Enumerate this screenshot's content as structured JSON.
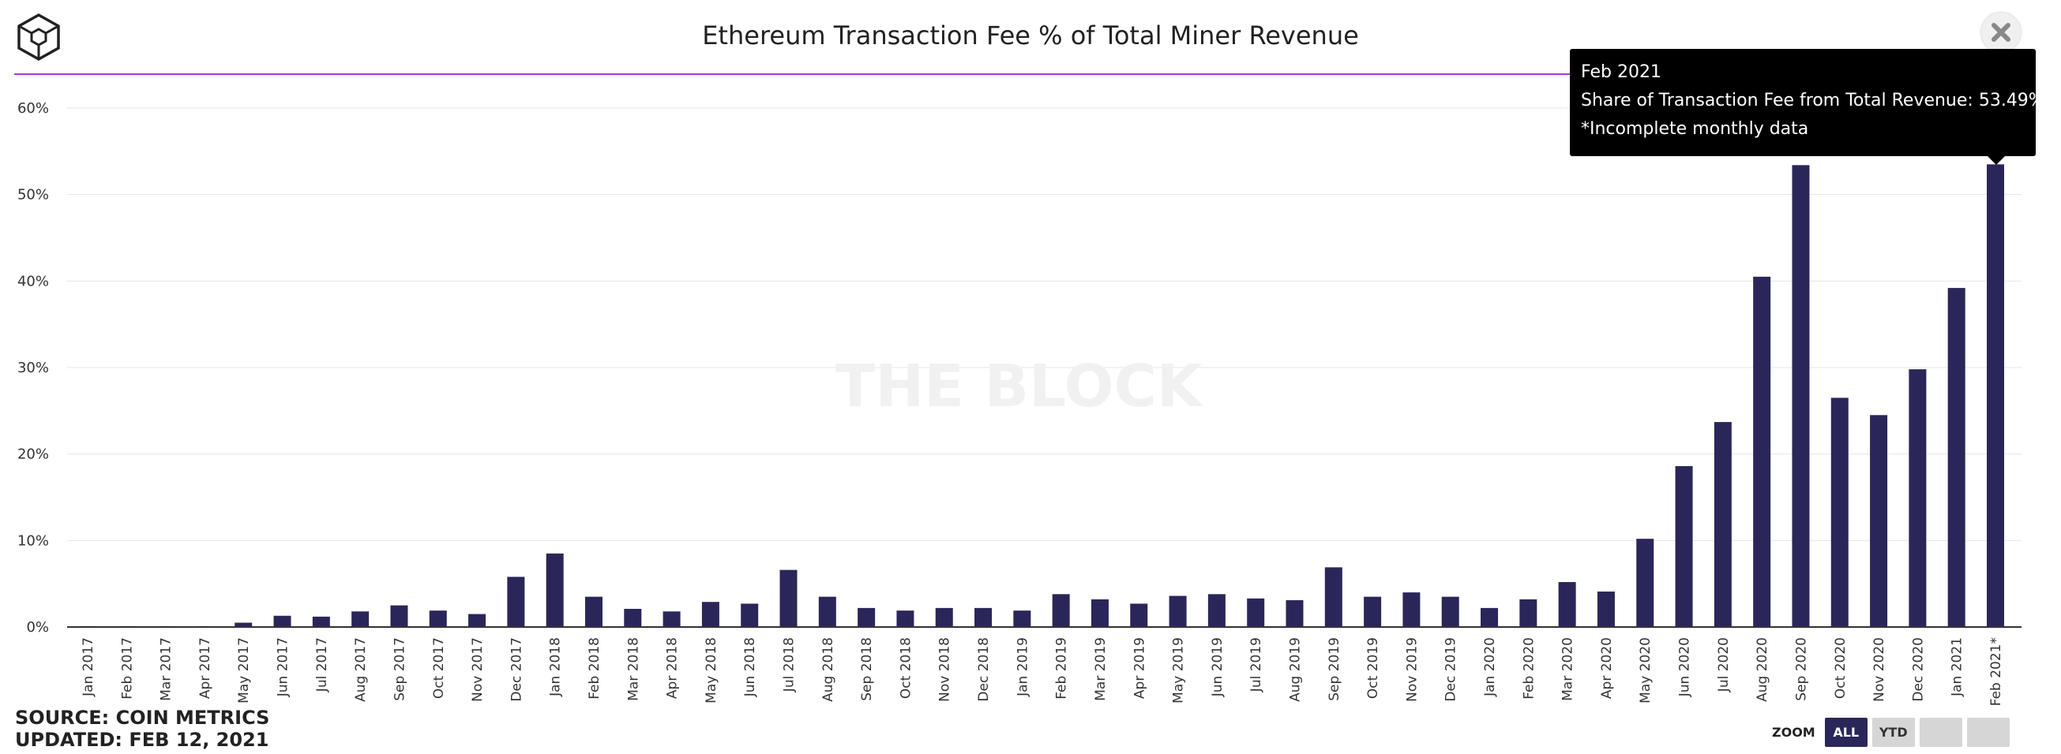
{
  "header": {
    "title": "Ethereum Transaction Fee % of Total Miner Revenue",
    "close_icon": "close-icon",
    "logo_icon": "the-block-logo-icon"
  },
  "watermark": "THE BLOCK",
  "footer": {
    "source": "SOURCE: COIN METRICS",
    "updated": "UPDATED: FEB 12, 2021"
  },
  "zoom": {
    "label": "ZOOM",
    "buttons": [
      "ALL",
      "YTD",
      "",
      ""
    ],
    "active": "ALL"
  },
  "tooltip": {
    "line1": "Feb 2021",
    "line2": "Share of Transaction Fee from Total Revenue: 53.49%",
    "line3": "*Incomplete monthly data"
  },
  "colors": {
    "bar": "#2b2659",
    "accent_line": "#a93ad0",
    "grid": "#e6e6e6",
    "tooltip_bg": "#000000"
  },
  "chart_data": {
    "type": "bar",
    "title": "Ethereum Transaction Fee % of Total Miner Revenue",
    "xlabel": "",
    "ylabel": "",
    "ylim": [
      0,
      60
    ],
    "yticks": [
      "0%",
      "10%",
      "20%",
      "30%",
      "40%",
      "50%",
      "60%"
    ],
    "grid": true,
    "categories": [
      "Jan 2017",
      "Feb 2017",
      "Mar 2017",
      "Apr 2017",
      "May 2017",
      "Jun 2017",
      "Jul 2017",
      "Aug 2017",
      "Sep 2017",
      "Oct 2017",
      "Nov 2017",
      "Dec 2017",
      "Jan 2018",
      "Feb 2018",
      "Mar 2018",
      "Apr 2018",
      "May 2018",
      "Jun 2018",
      "Jul 2018",
      "Aug 2018",
      "Sep 2018",
      "Oct 2018",
      "Nov 2018",
      "Dec 2018",
      "Jan 2019",
      "Feb 2019",
      "Mar 2019",
      "Apr 2019",
      "May 2019",
      "Jun 2019",
      "Jul 2019",
      "Aug 2019",
      "Sep 2019",
      "Oct 2019",
      "Nov 2019",
      "Dec 2019",
      "Jan 2020",
      "Feb 2020",
      "Mar 2020",
      "Apr 2020",
      "May 2020",
      "Jun 2020",
      "Jul 2020",
      "Aug 2020",
      "Sep 2020",
      "Oct 2020",
      "Nov 2020",
      "Dec 2020",
      "Jan 2021",
      "Feb 2021*"
    ],
    "values": [
      0.1,
      0.1,
      0.1,
      0.1,
      0.5,
      1.3,
      1.2,
      1.8,
      2.5,
      1.9,
      1.5,
      5.8,
      8.5,
      3.5,
      2.1,
      1.8,
      2.9,
      2.7,
      6.6,
      3.5,
      2.2,
      1.9,
      2.2,
      2.2,
      1.9,
      3.8,
      3.2,
      2.7,
      3.6,
      3.8,
      3.3,
      3.1,
      6.9,
      3.5,
      4.0,
      3.5,
      2.2,
      3.2,
      5.2,
      4.1,
      10.2,
      18.6,
      23.7,
      40.5,
      53.4,
      26.5,
      24.5,
      29.8,
      39.2,
      53.49
    ]
  }
}
